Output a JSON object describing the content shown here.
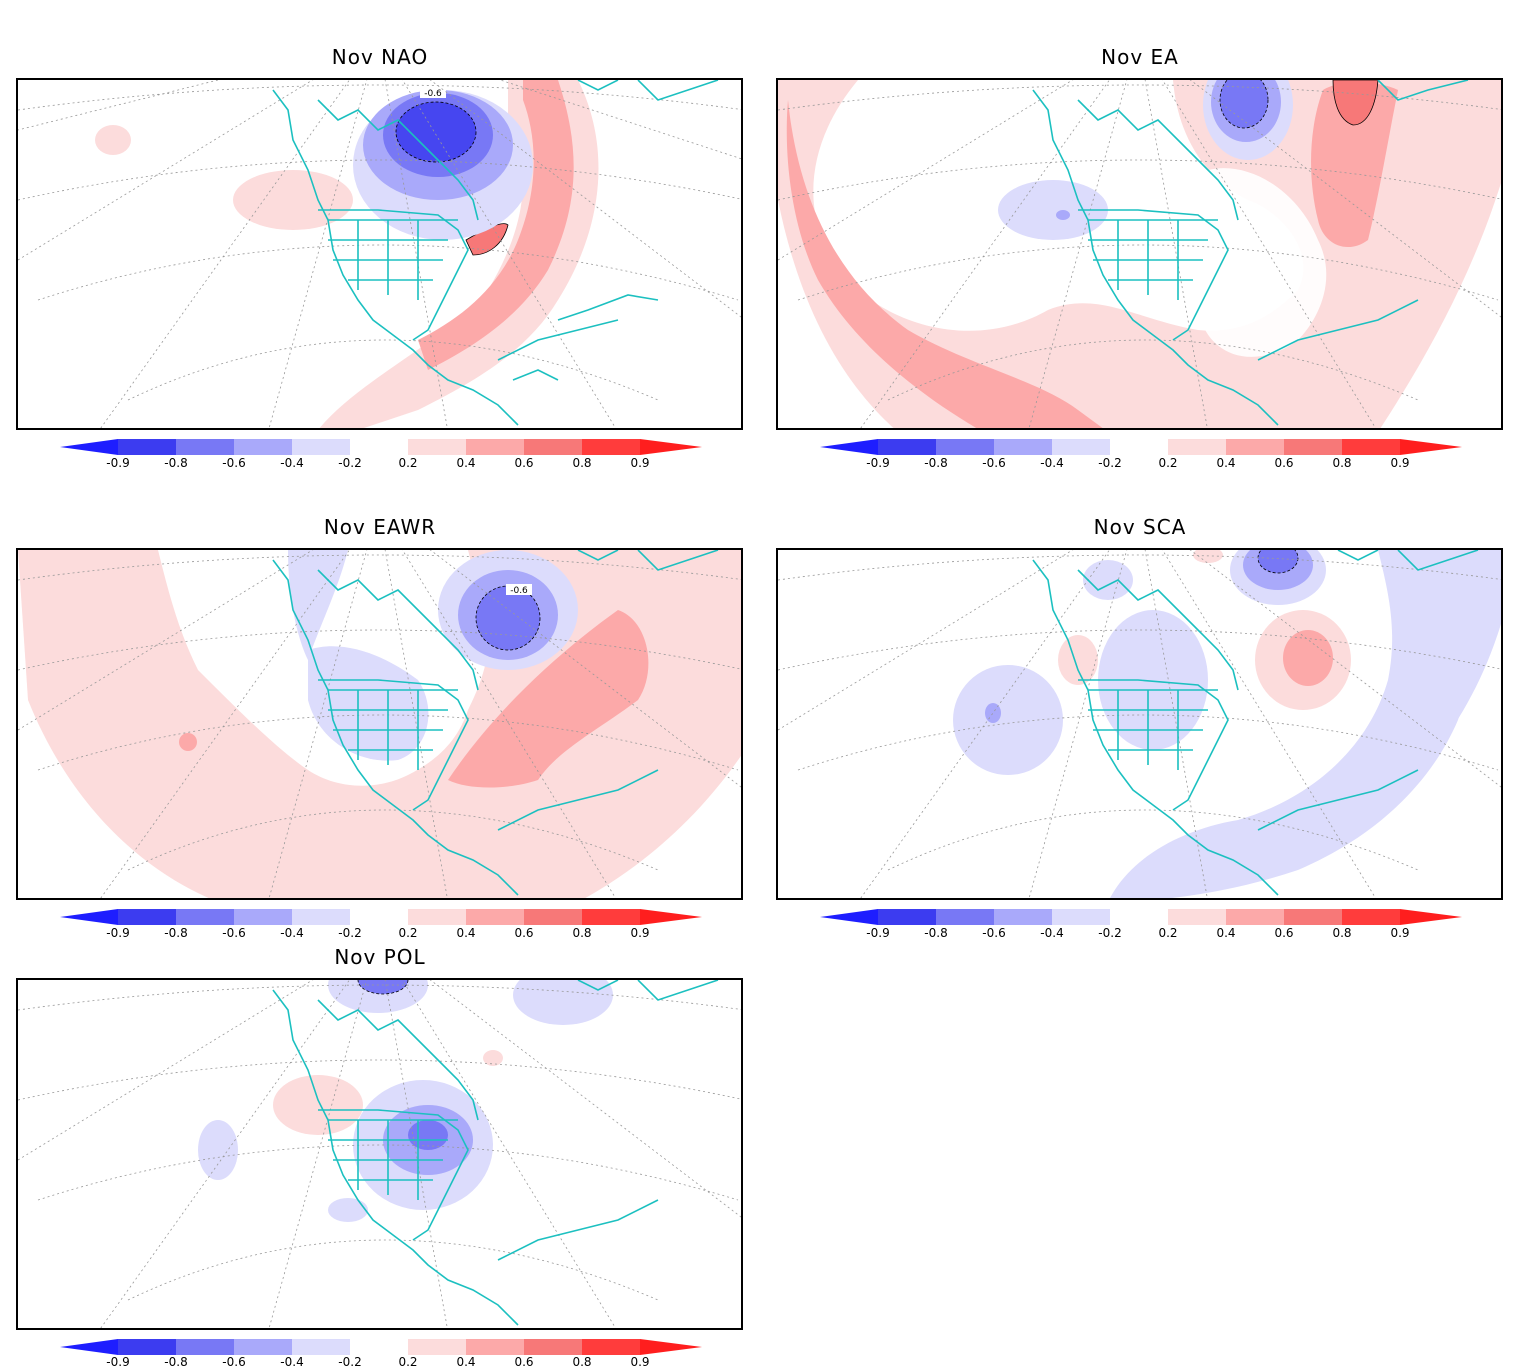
{
  "panels": [
    {
      "id": "nao",
      "title": "Nov NAO",
      "contour_label": "-0.6"
    },
    {
      "id": "ea",
      "title": "Nov EA",
      "contour_label": ""
    },
    {
      "id": "eawr",
      "title": "Nov EAWR",
      "contour_label": "-0.6"
    },
    {
      "id": "sca",
      "title": "Nov SCA",
      "contour_label": ""
    },
    {
      "id": "pol",
      "title": "Nov POL",
      "contour_label": ""
    }
  ],
  "colorbar": {
    "labels": [
      "-0.9",
      "-0.8",
      "-0.6",
      "-0.4",
      "-0.2",
      "0.2",
      "0.4",
      "0.6",
      "0.8",
      "0.9"
    ],
    "negative_colors": [
      "#1e1eff",
      "#3c3cf0",
      "#7878f5",
      "#a9a9fa",
      "#dcdcfc"
    ],
    "positive_colors": [
      "#fcdcdc",
      "#fca9a9",
      "#f77878",
      "#ff3c3c",
      "#ff1e1e"
    ]
  },
  "colors": {
    "coastline": "#1cc0c0",
    "grid": "#999999",
    "light_red": "#fcdcdc",
    "mid_red": "#fca9a9",
    "dark_red": "#f77878",
    "light_blue": "#dcdcfc",
    "mid_blue": "#a9a9fa",
    "dark_blue": "#7878f5",
    "deep_blue": "#4646f0"
  }
}
